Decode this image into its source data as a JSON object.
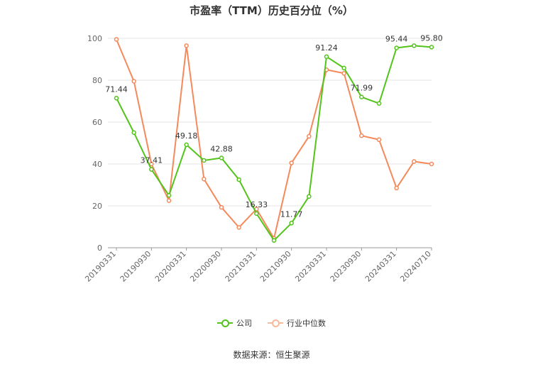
{
  "title": "市盈率（TTM）历史百分位（%）",
  "footer": "数据来源：恒生聚源",
  "chart_data": {
    "type": "line",
    "ylim": [
      0,
      100
    ],
    "yticks": [
      0,
      20,
      40,
      60,
      80,
      100
    ],
    "x_tick_labels": [
      "20190331",
      "20190930",
      "20200331",
      "20200930",
      "20210331",
      "20210930",
      "20230331",
      "20230930",
      "20240331",
      "20240710"
    ],
    "grid": true,
    "legend_position": "bottom",
    "series": [
      {
        "name": "公司",
        "color": "#52c41a",
        "values": [
          71.44,
          55.0,
          37.41,
          25.0,
          49.18,
          41.7,
          42.88,
          32.5,
          16.33,
          3.5,
          11.77,
          24.5,
          91.24,
          85.8,
          71.99,
          68.9,
          95.44,
          96.5,
          95.8
        ],
        "labels": [
          "71.44",
          "",
          "37.41",
          "",
          "49.18",
          "",
          "42.88",
          "",
          "16.33",
          "",
          "11.77",
          "",
          "91.24",
          "",
          "71.99",
          "",
          "95.44",
          "",
          "95.80"
        ]
      },
      {
        "name": "行业中位数",
        "color": "#f5895b",
        "values": [
          99.5,
          79.5,
          40.0,
          22.5,
          96.5,
          32.8,
          19.3,
          9.7,
          18.5,
          4.5,
          40.5,
          53.2,
          85.0,
          83.3,
          53.5,
          51.6,
          28.5,
          41.2,
          40.0
        ],
        "labels": []
      }
    ]
  }
}
